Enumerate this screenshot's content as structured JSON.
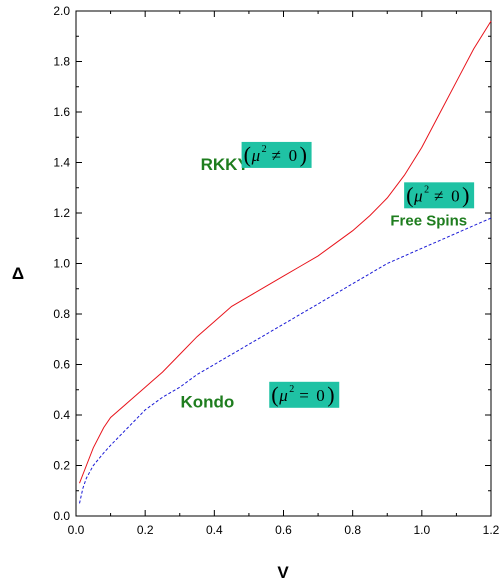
{
  "chart_data": {
    "type": "line",
    "title": "",
    "xlabel": "V",
    "ylabel": "Δ",
    "xlim": [
      0.0,
      1.2
    ],
    "ylim": [
      0.0,
      2.0
    ],
    "x_ticks": [
      "0.0",
      "0.2",
      "0.4",
      "0.6",
      "0.8",
      "1.0",
      "1.2"
    ],
    "y_ticks": [
      "0.0",
      "0.2",
      "0.4",
      "0.6",
      "0.8",
      "1.0",
      "1.2",
      "1.4",
      "1.6",
      "1.8",
      "2.0"
    ],
    "grid": false,
    "legend": "none",
    "series": [
      {
        "style": "solid",
        "color": "#e8141c",
        "points": [
          [
            0.01,
            0.13
          ],
          [
            0.03,
            0.2
          ],
          [
            0.05,
            0.27
          ],
          [
            0.08,
            0.35
          ],
          [
            0.1,
            0.39
          ],
          [
            0.15,
            0.45
          ],
          [
            0.2,
            0.51
          ],
          [
            0.25,
            0.57
          ],
          [
            0.3,
            0.64
          ],
          [
            0.35,
            0.71
          ],
          [
            0.4,
            0.77
          ],
          [
            0.45,
            0.83
          ],
          [
            0.5,
            0.87
          ],
          [
            0.55,
            0.91
          ],
          [
            0.6,
            0.95
          ],
          [
            0.65,
            0.99
          ],
          [
            0.7,
            1.03
          ],
          [
            0.75,
            1.08
          ],
          [
            0.8,
            1.13
          ],
          [
            0.85,
            1.19
          ],
          [
            0.9,
            1.26
          ],
          [
            0.95,
            1.35
          ],
          [
            1.0,
            1.46
          ],
          [
            1.05,
            1.59
          ],
          [
            1.1,
            1.72
          ],
          [
            1.15,
            1.85
          ],
          [
            1.2,
            1.96
          ]
        ]
      },
      {
        "style": "dashed",
        "color": "#1a1ad6",
        "points": [
          [
            0.01,
            0.05
          ],
          [
            0.02,
            0.11
          ],
          [
            0.03,
            0.15
          ],
          [
            0.05,
            0.2
          ],
          [
            0.08,
            0.25
          ],
          [
            0.1,
            0.28
          ],
          [
            0.15,
            0.35
          ],
          [
            0.2,
            0.42
          ],
          [
            0.25,
            0.47
          ],
          [
            0.3,
            0.51
          ],
          [
            0.35,
            0.56
          ],
          [
            0.4,
            0.6
          ],
          [
            0.45,
            0.64
          ],
          [
            0.5,
            0.68
          ],
          [
            0.55,
            0.72
          ],
          [
            0.6,
            0.76
          ],
          [
            0.65,
            0.8
          ],
          [
            0.7,
            0.84
          ],
          [
            0.75,
            0.88
          ],
          [
            0.8,
            0.92
          ],
          [
            0.85,
            0.96
          ],
          [
            0.9,
            1.0
          ],
          [
            0.95,
            1.03
          ],
          [
            1.0,
            1.06
          ],
          [
            1.05,
            1.09
          ],
          [
            1.1,
            1.12
          ],
          [
            1.15,
            1.15
          ],
          [
            1.2,
            1.18
          ]
        ]
      }
    ],
    "annotations": [
      {
        "id": "rkky",
        "text": "RKKY",
        "x": 0.43,
        "y": 1.37,
        "color": "#1e7d1e"
      },
      {
        "id": "free-spins",
        "text": "Free Spins",
        "x": 1.02,
        "y": 1.15,
        "color": "#1e7d1e"
      },
      {
        "id": "kondo",
        "text": "Kondo",
        "x": 0.38,
        "y": 0.43,
        "color": "#1e7d1e"
      }
    ],
    "math_labels": [
      {
        "id": "rkky-mu",
        "base": "μ",
        "sup": "2",
        "rel": "≠",
        "val": "0",
        "x": 0.58,
        "y": 1.43,
        "bg": "#1fc2a4"
      },
      {
        "id": "free-mu",
        "base": "μ",
        "sup": "2",
        "rel": "≠",
        "val": "0",
        "x": 1.05,
        "y": 1.27,
        "bg": "#1fc2a4"
      },
      {
        "id": "kondo-mu",
        "base": "μ",
        "sup": "2",
        "rel": "=",
        "val": "0",
        "x": 0.66,
        "y": 0.48,
        "bg": "#1fc2a4"
      }
    ]
  }
}
